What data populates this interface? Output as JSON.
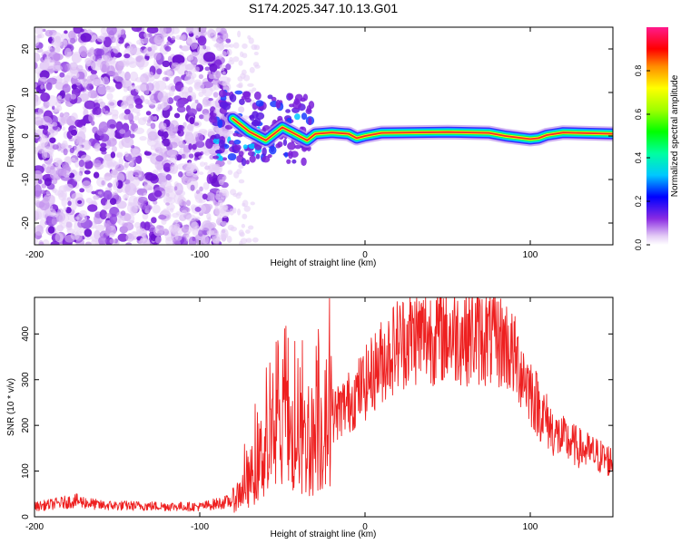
{
  "title": "S174.2025.347.10.13.G01",
  "chart_data": [
    {
      "type": "heatmap",
      "xlabel": "Height of straight line (km)",
      "ylabel": "Frequency (Hz)",
      "xlim": [
        -200,
        150
      ],
      "ylim": [
        -25,
        25
      ],
      "xticks": [
        -200,
        -100,
        0,
        100
      ],
      "yticks": [
        -20,
        -10,
        0,
        10,
        20
      ],
      "colorbar": {
        "label": "Normalized spectral amplitude",
        "range": [
          0,
          1
        ],
        "ticks": [
          0.0,
          0.2,
          0.4,
          0.6,
          0.8
        ]
      },
      "ridge": [
        {
          "x": -80,
          "y": 4
        },
        {
          "x": -70,
          "y": 1
        },
        {
          "x": -60,
          "y": -1
        },
        {
          "x": -50,
          "y": 2
        },
        {
          "x": -40,
          "y": 0
        },
        {
          "x": -35,
          "y": -1
        },
        {
          "x": -30,
          "y": 0.5
        },
        {
          "x": -20,
          "y": 0.8
        },
        {
          "x": -10,
          "y": 0.5
        },
        {
          "x": -5,
          "y": -0.5
        },
        {
          "x": 0,
          "y": 0
        },
        {
          "x": 10,
          "y": 0.7
        },
        {
          "x": 50,
          "y": 0.9
        },
        {
          "x": 75,
          "y": 0.7
        },
        {
          "x": 85,
          "y": 0
        },
        {
          "x": 100,
          "y": -0.7
        },
        {
          "x": 105,
          "y": -0.5
        },
        {
          "x": 110,
          "y": 0.2
        },
        {
          "x": 120,
          "y": 0.8
        },
        {
          "x": 150,
          "y": 0.5
        }
      ],
      "noise_extent": [
        -200,
        -85
      ]
    },
    {
      "type": "line",
      "xlabel": "Height of straight line (km)",
      "ylabel": "SNR (10 * v/v)",
      "xlim": [
        -200,
        150
      ],
      "ylim": [
        0,
        480
      ],
      "xticks": [
        -200,
        -100,
        0,
        100
      ],
      "yticks": [
        0,
        100,
        200,
        300,
        400
      ],
      "series": [
        {
          "name": "SNR",
          "color": "#ee2020",
          "envelope": [
            {
              "x": -200,
              "y": 22
            },
            {
              "x": -175,
              "y": 35
            },
            {
              "x": -160,
              "y": 25
            },
            {
              "x": -100,
              "y": 22
            },
            {
              "x": -80,
              "y": 35
            },
            {
              "x": -70,
              "y": 80
            },
            {
              "x": -60,
              "y": 150
            },
            {
              "x": -50,
              "y": 180
            },
            {
              "x": -40,
              "y": 160
            },
            {
              "x": -30,
              "y": 170
            },
            {
              "x": -20,
              "y": 220
            },
            {
              "x": -10,
              "y": 250
            },
            {
              "x": 0,
              "y": 290
            },
            {
              "x": 10,
              "y": 340
            },
            {
              "x": 20,
              "y": 380
            },
            {
              "x": 30,
              "y": 395
            },
            {
              "x": 50,
              "y": 400
            },
            {
              "x": 70,
              "y": 395
            },
            {
              "x": 85,
              "y": 380
            },
            {
              "x": 95,
              "y": 320
            },
            {
              "x": 105,
              "y": 240
            },
            {
              "x": 115,
              "y": 180
            },
            {
              "x": 130,
              "y": 150
            },
            {
              "x": 150,
              "y": 120
            }
          ]
        }
      ]
    }
  ]
}
